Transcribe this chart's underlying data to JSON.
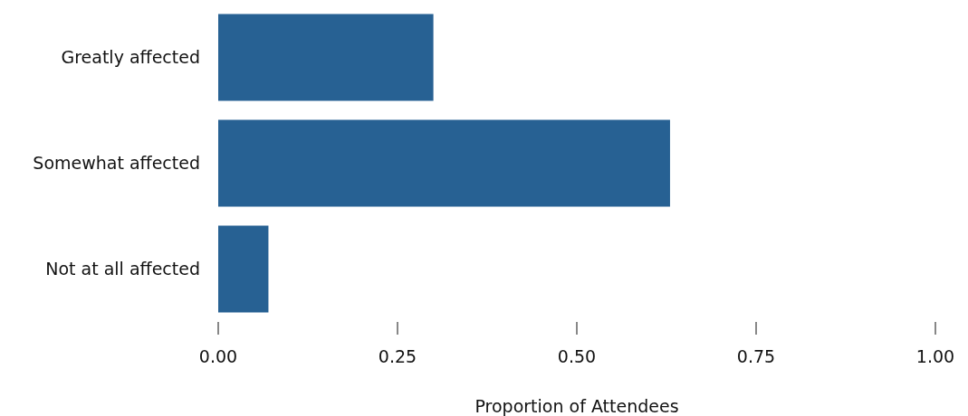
{
  "chart_data": {
    "type": "bar",
    "orientation": "horizontal",
    "categories": [
      "Greatly affected",
      "Somewhat affected",
      "Not at all affected"
    ],
    "values": [
      0.3,
      0.63,
      0.07
    ],
    "color": "#276193",
    "xlabel": "Proportion of Attendees",
    "xlim": [
      0,
      1
    ],
    "xticks": [
      {
        "value": 0,
        "label": "0.00"
      },
      {
        "value": 0.25,
        "label": "0.25"
      },
      {
        "value": 0.5,
        "label": "0.50"
      },
      {
        "value": 0.75,
        "label": "0.75"
      },
      {
        "value": 1,
        "label": "1.00"
      }
    ],
    "grid": false,
    "legend": false
  }
}
